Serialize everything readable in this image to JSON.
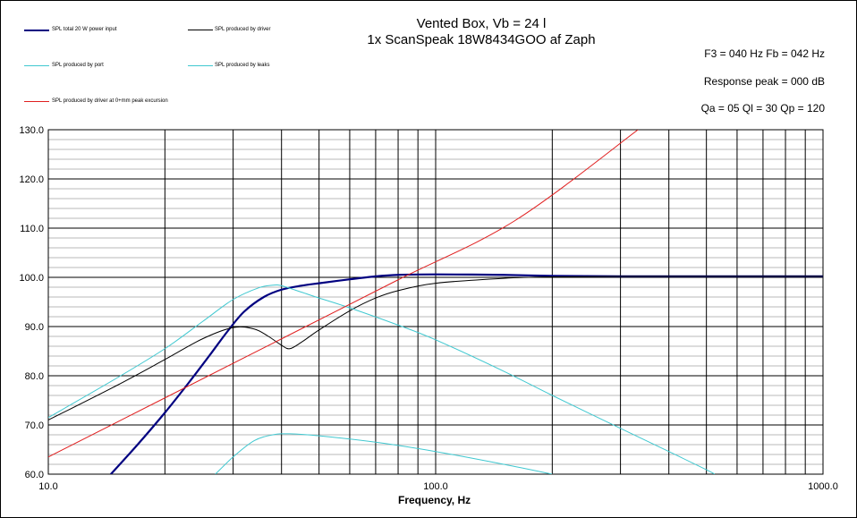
{
  "chart_data": {
    "type": "line",
    "title": "Vented Box, Vb = 24 l",
    "subtitle": "1x ScanSpeak 18W8434GOO af Zaph",
    "annotations": [
      "F3 = 040  Hz   Fb = 042  Hz",
      "Response peak = 000  dB",
      "Qa = 05   Ql = 30   Qp = 120"
    ],
    "xlabel": "Frequency, Hz",
    "ylabel": "",
    "x_scale": "log",
    "xlim": [
      10,
      1000
    ],
    "ylim": [
      60,
      130
    ],
    "x_tick_labels": [
      "10.0",
      "100.0",
      "1000.0"
    ],
    "y_tick_labels": [
      "60.0",
      "70.0",
      "80.0",
      "90.0",
      "100.0",
      "110.0",
      "120.0",
      "130.0"
    ],
    "grid": true,
    "legend_placement": "top-left",
    "series": [
      {
        "name": "SPL total 20 W power input",
        "color": "#000080",
        "width": 2.2,
        "x": [
          14.5,
          17,
          20,
          23,
          26,
          29,
          32,
          36,
          40,
          45,
          50,
          60,
          70,
          80,
          100,
          150,
          200,
          300,
          500,
          1000
        ],
        "y": [
          60,
          66,
          72.5,
          78.5,
          84,
          89,
          93,
          96,
          97.5,
          98.3,
          98.8,
          99.6,
          100.2,
          100.5,
          100.6,
          100.5,
          100.3,
          100.2,
          100.2,
          100.2
        ]
      },
      {
        "name": "SPL produced by driver",
        "color": "#000000",
        "width": 1,
        "x": [
          10,
          15,
          20,
          25,
          30,
          34,
          37,
          40,
          42,
          45,
          50,
          60,
          70,
          80,
          100,
          150,
          200,
          300,
          500,
          1000
        ],
        "y": [
          71,
          78,
          83.3,
          87.5,
          89.8,
          89.5,
          88,
          86.2,
          85.5,
          86.8,
          89.3,
          93.2,
          95.8,
          97.3,
          98.8,
          99.8,
          100.1,
          100.2,
          100.2,
          100.2
        ]
      },
      {
        "name": "SPL produced by port",
        "color": "#40C8D0",
        "width": 1,
        "x": [
          10,
          15,
          20,
          25,
          30,
          35,
          38,
          40,
          45,
          50,
          60,
          80,
          100,
          150,
          200,
          300,
          400,
          500,
          525
        ],
        "y": [
          71.5,
          79.5,
          85.5,
          91,
          95.5,
          97.9,
          98.4,
          98.3,
          97,
          95.8,
          93.8,
          90.3,
          87.3,
          80.9,
          76,
          69.3,
          64.6,
          60.9,
          60
        ]
      },
      {
        "name": "SPL produced by leaks",
        "color": "#40C8D0",
        "width": 1,
        "x": [
          27,
          30,
          34,
          38,
          42,
          50,
          70,
          100,
          150,
          200
        ],
        "y": [
          60,
          63.5,
          66.8,
          68,
          68.2,
          67.8,
          66.5,
          64.6,
          62,
          60
        ]
      },
      {
        "name": "SPL produced by driver at 0+mm peak excursion",
        "color": "#E02020",
        "width": 1,
        "x": [
          10,
          20,
          40,
          80,
          160,
          333
        ],
        "y": [
          63.5,
          75.5,
          87.5,
          99.5,
          111.5,
          130
        ]
      }
    ]
  }
}
